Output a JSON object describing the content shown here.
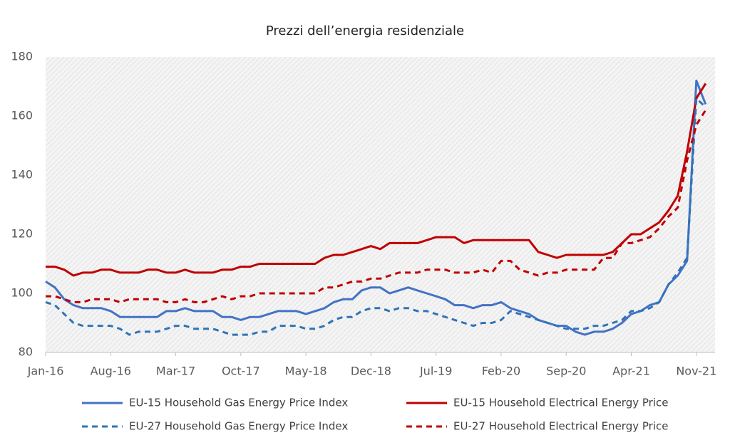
{
  "chart_data": {
    "type": "line",
    "title": "Prezzi dell’energia residenziale",
    "categories": [
      "Jan-16",
      null,
      null,
      null,
      null,
      null,
      null,
      "Aug-16",
      null,
      null,
      null,
      null,
      null,
      null,
      "Mar-17",
      null,
      null,
      null,
      null,
      null,
      null,
      "Oct-17",
      null,
      null,
      null,
      null,
      null,
      null,
      "May-18",
      null,
      null,
      null,
      null,
      null,
      null,
      "Dec-18",
      null,
      null,
      null,
      null,
      null,
      null,
      "Jul-19",
      null,
      null,
      null,
      null,
      null,
      null,
      "Feb-20",
      null,
      null,
      null,
      null,
      null,
      null,
      "Sep-20",
      null,
      null,
      null,
      null,
      null,
      null,
      "Apr-21",
      null,
      null,
      null,
      null,
      null,
      null,
      "Nov-21",
      null
    ],
    "series": [
      {
        "name": "EU-15 Household Gas Energy Price Index",
        "color": "#4472c4",
        "dashed": false,
        "values": [
          104,
          102,
          98,
          96,
          95,
          95,
          95,
          94,
          92,
          92,
          92,
          92,
          92,
          94,
          94,
          95,
          94,
          94,
          94,
          92,
          92,
          91,
          92,
          92,
          93,
          94,
          94,
          94,
          93,
          94,
          95,
          97,
          98,
          98,
          101,
          102,
          102,
          100,
          101,
          102,
          101,
          100,
          99,
          98,
          96,
          96,
          95,
          96,
          96,
          97,
          95,
          94,
          93,
          91,
          90,
          89,
          89,
          87,
          86,
          87,
          87,
          88,
          90,
          93,
          94,
          96,
          97,
          103,
          106,
          111,
          172,
          164
        ]
      },
      {
        "name": "EU-15 Household Electrical Energy Price",
        "color": "#c00000",
        "dashed": false,
        "values": [
          109,
          109,
          108,
          106,
          107,
          107,
          108,
          108,
          107,
          107,
          107,
          108,
          108,
          107,
          107,
          108,
          107,
          107,
          107,
          108,
          108,
          109,
          109,
          110,
          110,
          110,
          110,
          110,
          110,
          110,
          112,
          113,
          113,
          114,
          115,
          116,
          115,
          117,
          117,
          117,
          117,
          118,
          119,
          119,
          119,
          117,
          118,
          118,
          118,
          118,
          118,
          118,
          118,
          114,
          113,
          112,
          113,
          113,
          113,
          113,
          113,
          114,
          117,
          120,
          120,
          122,
          124,
          128,
          133,
          148,
          166,
          171
        ]
      },
      {
        "name": "EU-27 Household Gas Energy Price Index",
        "color": "#2e75b6",
        "dashed": true,
        "values": [
          97,
          96,
          93,
          90,
          89,
          89,
          89,
          89,
          88,
          86,
          87,
          87,
          87,
          88,
          89,
          89,
          88,
          88,
          88,
          87,
          86,
          86,
          86,
          87,
          87,
          89,
          89,
          89,
          88,
          88,
          89,
          91,
          92,
          92,
          94,
          95,
          95,
          94,
          95,
          95,
          94,
          94,
          93,
          92,
          91,
          90,
          89,
          90,
          90,
          91,
          94,
          93,
          92,
          91,
          90,
          89,
          88,
          88,
          88,
          89,
          89,
          90,
          91,
          94,
          94,
          95,
          97,
          103,
          107,
          112,
          166,
          163
        ]
      },
      {
        "name": "EU-27 Household Electrical Energy Price",
        "color": "#c00000",
        "dashed": true,
        "values": [
          99,
          99,
          98,
          97,
          97,
          98,
          98,
          98,
          97,
          98,
          98,
          98,
          98,
          97,
          97,
          98,
          97,
          97,
          98,
          99,
          98,
          99,
          99,
          100,
          100,
          100,
          100,
          100,
          100,
          100,
          102,
          102,
          103,
          104,
          104,
          105,
          105,
          106,
          107,
          107,
          107,
          108,
          108,
          108,
          107,
          107,
          107,
          108,
          107,
          111,
          111,
          108,
          107,
          106,
          107,
          107,
          108,
          108,
          108,
          108,
          112,
          112,
          117,
          117,
          118,
          119,
          122,
          126,
          129,
          145,
          157,
          162
        ]
      }
    ],
    "ylim": [
      80,
      180
    ],
    "yticks": [
      80,
      100,
      120,
      140,
      160,
      180
    ],
    "grid": false
  }
}
